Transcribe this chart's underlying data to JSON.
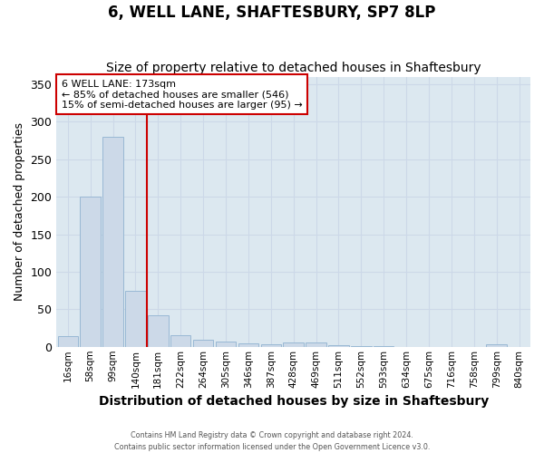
{
  "title": "6, WELL LANE, SHAFTESBURY, SP7 8LP",
  "subtitle": "Size of property relative to detached houses in Shaftesbury",
  "xlabel": "Distribution of detached houses by size in Shaftesbury",
  "ylabel": "Number of detached properties",
  "footer_line1": "Contains HM Land Registry data © Crown copyright and database right 2024.",
  "footer_line2": "Contains public sector information licensed under the Open Government Licence v3.0.",
  "bar_labels": [
    "16sqm",
    "58sqm",
    "99sqm",
    "140sqm",
    "181sqm",
    "222sqm",
    "264sqm",
    "305sqm",
    "346sqm",
    "387sqm",
    "428sqm",
    "469sqm",
    "511sqm",
    "552sqm",
    "593sqm",
    "634sqm",
    "675sqm",
    "716sqm",
    "758sqm",
    "799sqm",
    "840sqm"
  ],
  "bar_values": [
    14,
    200,
    280,
    75,
    42,
    15,
    9,
    7,
    5,
    3,
    6,
    6,
    2,
    1,
    1,
    0,
    0,
    0,
    0,
    3,
    0
  ],
  "bar_color": "#ccd9e8",
  "bar_edge_color": "#99b8d4",
  "vline_x": 3.5,
  "vline_color": "#cc0000",
  "annotation_text": "6 WELL LANE: 173sqm\n← 85% of detached houses are smaller (546)\n15% of semi-detached houses are larger (95) →",
  "annotation_box_facecolor": "#ffffff",
  "annotation_box_edgecolor": "#cc0000",
  "ylim": [
    0,
    360
  ],
  "yticks": [
    0,
    50,
    100,
    150,
    200,
    250,
    300,
    350
  ],
  "grid_color": "#ccd8e8",
  "bg_color": "#dce8f0",
  "fig_bg_color": "#ffffff",
  "title_fontsize": 12,
  "subtitle_fontsize": 10,
  "ylabel_fontsize": 9,
  "xlabel_fontsize": 10
}
